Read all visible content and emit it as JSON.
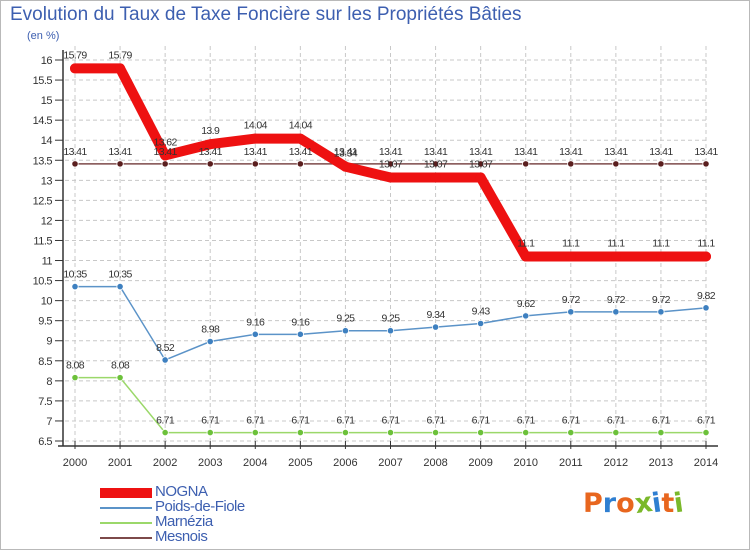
{
  "page": {
    "title": "Evolution du Taux de Taxe Foncière sur les Propriétés Bâties",
    "subtitle": "(en %)",
    "brand": "Proxiti"
  },
  "colors": {
    "title": "#3d5fb0",
    "grid": "#c8c8c8",
    "axis": "#333333",
    "brand_letters": [
      "#e8661e",
      "#2f7fd1",
      "#e8661e",
      "#7ab82a",
      "#2f7fd1",
      "#e8661e",
      "#7ab82a"
    ]
  },
  "chart_data": {
    "type": "line",
    "title": "Evolution du Taux de Taxe Foncière sur les Propriétés Bâties",
    "ylabel": "(en %)",
    "xlabel": "",
    "ylim": [
      6.5,
      16
    ],
    "yticks": [
      "6.5",
      "7",
      "7.5",
      "8",
      "8.5",
      "9",
      "9.5",
      "10",
      "10.5",
      "11",
      "11.5",
      "12",
      "12.5",
      "13",
      "13.5",
      "14",
      "14.5",
      "15",
      "15.5",
      "16"
    ],
    "grid": true,
    "legend_position": "bottom-left",
    "x": [
      "2000",
      "2001",
      "2002",
      "2003",
      "2004",
      "2005",
      "2006",
      "2007",
      "2008",
      "2009",
      "2010",
      "2011",
      "2012",
      "2013",
      "2014"
    ],
    "series": [
      {
        "name": "NOGNA",
        "color": "#ee1111",
        "style": "thick",
        "values": [
          15.79,
          15.79,
          13.62,
          13.9,
          14.04,
          14.04,
          13.34,
          13.07,
          13.07,
          13.07,
          11.1,
          11.1,
          11.1,
          11.1,
          11.1
        ],
        "labels": [
          "15.79",
          "15.79",
          "13.62",
          "13.9",
          "14.04",
          "14.04",
          "13.34",
          "13.07",
          "13.07",
          "13.07",
          "11.1",
          "11.1",
          "11.1",
          "11.1",
          "11.1"
        ]
      },
      {
        "name": "Poids-de-Fiole",
        "color": "#5b93c8",
        "marker": "#3e80c0",
        "values": [
          10.35,
          10.35,
          8.52,
          8.98,
          9.16,
          9.16,
          9.25,
          9.25,
          9.34,
          9.43,
          9.62,
          9.72,
          9.72,
          9.72,
          9.82
        ],
        "labels": [
          "10.35",
          "10.35",
          "8.52",
          "8.98",
          "9.16",
          "9.16",
          "9.25",
          "9.25",
          "9.34",
          "9.43",
          "9.62",
          "9.72",
          "9.72",
          "9.72",
          "9.82"
        ]
      },
      {
        "name": "Marnézia",
        "color": "#9bd86a",
        "marker": "#6cc13a",
        "values": [
          8.08,
          8.08,
          6.71,
          6.71,
          6.71,
          6.71,
          6.71,
          6.71,
          6.71,
          6.71,
          6.71,
          6.71,
          6.71,
          6.71,
          6.71
        ],
        "labels": [
          "8.08",
          "8.08",
          "6.71",
          "6.71",
          "6.71",
          "6.71",
          "6.71",
          "6.71",
          "6.71",
          "6.71",
          "6.71",
          "6.71",
          "6.71",
          "6.71",
          "6.71"
        ]
      },
      {
        "name": "Mesnois",
        "color": "#7d4a4a",
        "marker": "#5a1e1e",
        "values": [
          13.41,
          13.41,
          13.41,
          13.41,
          13.41,
          13.41,
          13.41,
          13.41,
          13.41,
          13.41,
          13.41,
          13.41,
          13.41,
          13.41,
          13.41
        ],
        "labels": [
          "13.41",
          "13.41",
          "13.41",
          "13.41",
          "13.41",
          "13.41",
          "13.41",
          "13.41",
          "13.41",
          "13.41",
          "13.41",
          "13.41",
          "13.41",
          "13.41",
          "13.41"
        ]
      }
    ]
  }
}
